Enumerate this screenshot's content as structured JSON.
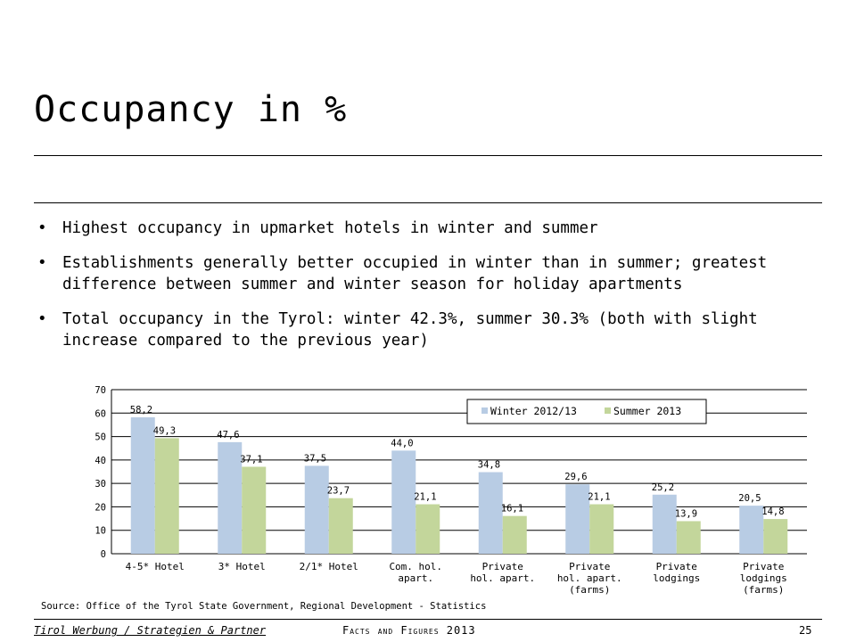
{
  "slide": {
    "title": "Occupancy in %",
    "bullets": [
      "Highest occupancy in upmarket hotels in winter and summer",
      "Establishments generally better occupied in winter than in summer; greatest difference between summer and winter season for holiday apartments",
      "Total occupancy in the Tyrol: winter 42.3%, summer 30.3% (both with slight increase compared to the previous year)"
    ],
    "source": "Source: Office of the Tyrol State Government, Regional Development - Statistics",
    "footer": {
      "left": "Tirol Werbung / Strategien & Partner",
      "center": "Facts and Figures 2013",
      "page": "25"
    }
  },
  "chart_data": {
    "type": "bar",
    "categories": [
      [
        "4-5* Hotel"
      ],
      [
        "3* Hotel"
      ],
      [
        "2/1* Hotel"
      ],
      [
        "Com. hol.",
        "apart."
      ],
      [
        "Private",
        "hol. apart."
      ],
      [
        "Private",
        "hol. apart.",
        "(farms)"
      ],
      [
        "Private",
        "lodgings"
      ],
      [
        "Private",
        "lodgings",
        "(farms)"
      ]
    ],
    "series": [
      {
        "name": "Winter 2012/13",
        "color": "#b8cce4",
        "values": [
          58.2,
          47.6,
          37.5,
          44.0,
          34.8,
          29.6,
          25.2,
          20.5
        ],
        "labels": [
          "58,2",
          "47,6",
          "37,5",
          "44,0",
          "34,8",
          "29,6",
          "25,2",
          "20,5"
        ]
      },
      {
        "name": "Summer 2013",
        "color": "#c3d69b",
        "values": [
          49.3,
          37.1,
          23.7,
          21.1,
          16.1,
          21.1,
          13.9,
          14.8
        ],
        "labels": [
          "49,3",
          "37,1",
          "23,7",
          "21,1",
          "16,1",
          "21,1",
          "13,9",
          "14,8"
        ]
      }
    ],
    "yticks": [
      0,
      10,
      20,
      30,
      40,
      50,
      60,
      70
    ],
    "ylim": [
      0,
      70
    ],
    "grid": true,
    "legend": "top-right"
  }
}
